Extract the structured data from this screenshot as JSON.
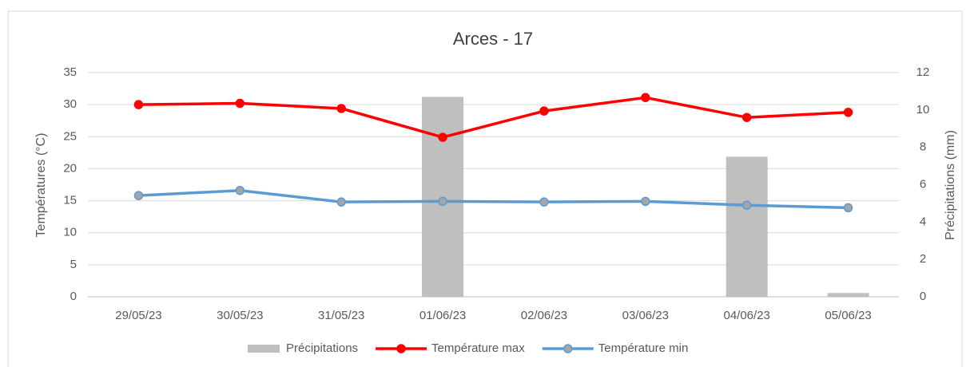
{
  "chart_data": {
    "type": "combo",
    "title": "Arces - 17",
    "ylabel": "Températures (°C)",
    "y2label": "Précipitations (mm)",
    "categories": [
      "29/05/23",
      "30/05/23",
      "31/05/23",
      "01/06/23",
      "02/06/23",
      "03/06/23",
      "04/06/23",
      "05/06/23"
    ],
    "series": [
      {
        "name": "Précipitations",
        "type": "bar",
        "axis": "y2",
        "color": "#bfbfbf",
        "values": [
          0,
          0,
          0,
          10.7,
          0,
          0,
          7.5,
          0.2
        ]
      },
      {
        "name": "Température max",
        "type": "line",
        "axis": "y",
        "color": "#ff0000",
        "marker_color": "#ff0000",
        "values": [
          30.0,
          30.2,
          29.4,
          24.9,
          29.0,
          31.1,
          28.0,
          28.8
        ]
      },
      {
        "name": "Température min",
        "type": "line",
        "axis": "y",
        "color": "#5b9bd5",
        "marker_color": "#a5a5a5",
        "values": [
          15.8,
          16.6,
          14.8,
          14.9,
          14.8,
          14.9,
          14.3,
          13.9
        ]
      }
    ],
    "ylim": [
      0,
      35
    ],
    "yticks": [
      0,
      5,
      10,
      15,
      20,
      25,
      30,
      35
    ],
    "y2lim": [
      0,
      12
    ],
    "y2ticks": [
      0,
      2,
      4,
      6,
      8,
      10,
      12
    ],
    "grid": true,
    "legend": "bottom"
  }
}
